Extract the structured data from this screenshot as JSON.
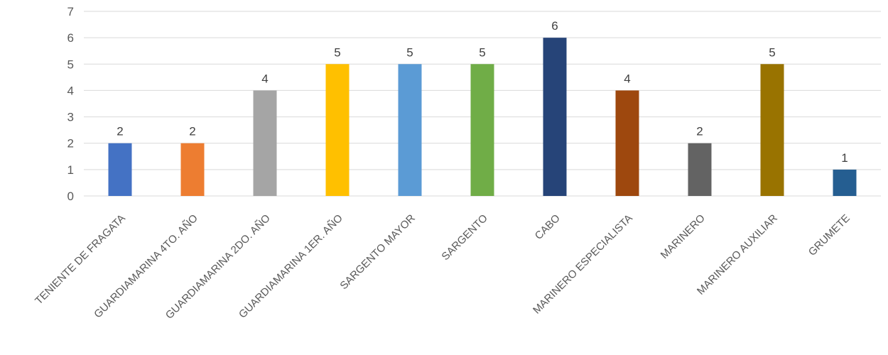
{
  "chart_data": {
    "type": "bar",
    "title": "",
    "xlabel": "",
    "ylabel": "",
    "ylim": [
      0,
      7
    ],
    "yticks": [
      0,
      1,
      2,
      3,
      4,
      5,
      6,
      7
    ],
    "grid": true,
    "legend": "none",
    "data_labels": true,
    "categories": [
      "TENIENTE DE FRAGATA",
      "GUARDIAMARINA 4TO. AÑO",
      "GUARDIAMARINA 2DO. AÑO",
      "GUARDIAMARINA 1ER. AÑO",
      "SARGENTO MAYOR",
      "SARGENTO",
      "CABO",
      "MARINERO ESPECIALISTA",
      "MARINERO",
      "MARINERO AUXILIAR",
      "GRUMETE"
    ],
    "values": [
      2,
      2,
      4,
      5,
      5,
      5,
      6,
      4,
      2,
      5,
      1
    ],
    "colors": [
      "#4472c4",
      "#ed7d31",
      "#a5a5a5",
      "#ffc000",
      "#5b9bd5",
      "#70ad47",
      "#264478",
      "#9e480e",
      "#636363",
      "#997300",
      "#255e91"
    ]
  }
}
